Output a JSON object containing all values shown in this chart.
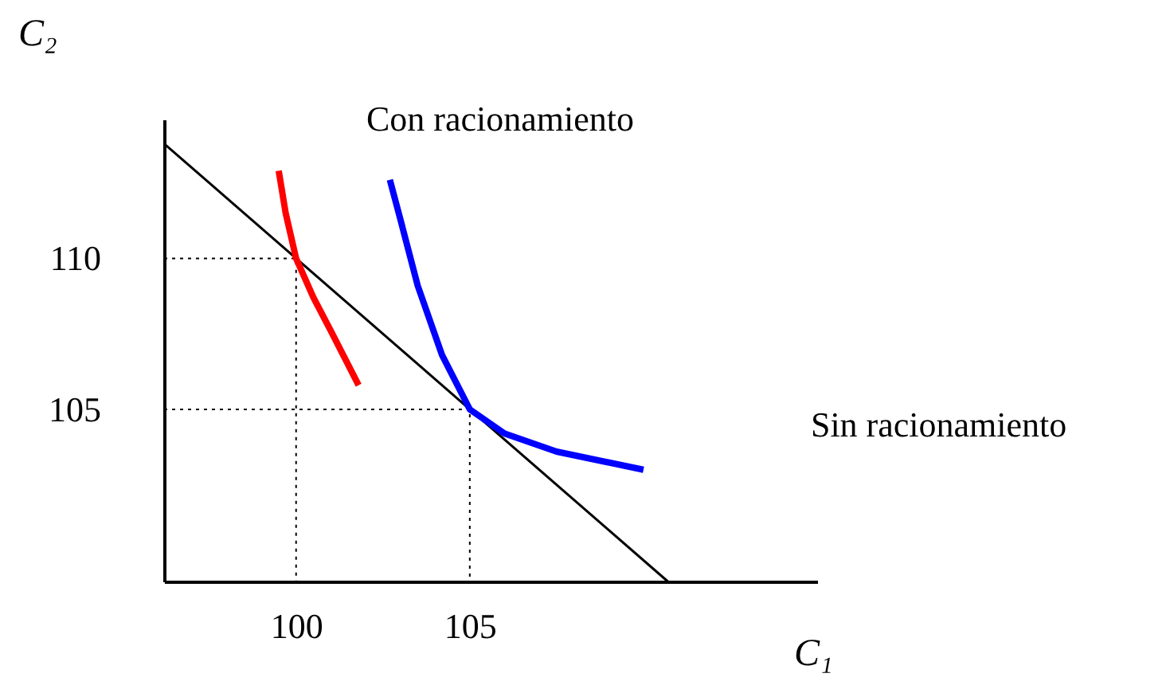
{
  "chart_data": {
    "type": "line",
    "xlabel": "C₁",
    "ylabel": "C₂",
    "xlim": [
      96.2,
      115
    ],
    "ylim": [
      99.3,
      114.6
    ],
    "xticks": [
      100,
      105
    ],
    "yticks": [
      110,
      105
    ],
    "grid": false,
    "series": [
      {
        "color": "#000000",
        "x": [
          96.2,
          110.7
        ],
        "values": [
          113.8,
          99.3
        ],
        "line_style": "solid"
      },
      {
        "color": "#000000",
        "x": [
          96.2,
          100,
          100
        ],
        "values": [
          110,
          110,
          99.3
        ],
        "line_style": "dotted"
      },
      {
        "color": "#000000",
        "x": [
          96.2,
          105,
          105
        ],
        "values": [
          105,
          105,
          99.3
        ],
        "line_style": "dotted"
      },
      {
        "name": "Con racionamiento",
        "color": "#ff0000",
        "x": [
          99.5,
          99.7,
          100,
          100.5,
          101,
          101.8
        ],
        "values": [
          112.9,
          111.5,
          110,
          108.7,
          107.6,
          105.8
        ],
        "line_style": "solid"
      },
      {
        "name": "Sin racionamiento",
        "color": "#0000ff",
        "x": [
          102.7,
          103.0,
          103.5,
          104.2,
          105,
          106,
          107.5,
          110
        ],
        "values": [
          112.6,
          111.3,
          109.1,
          106.8,
          105,
          104.2,
          103.6,
          103.0
        ],
        "line_style": "solid"
      }
    ]
  }
}
